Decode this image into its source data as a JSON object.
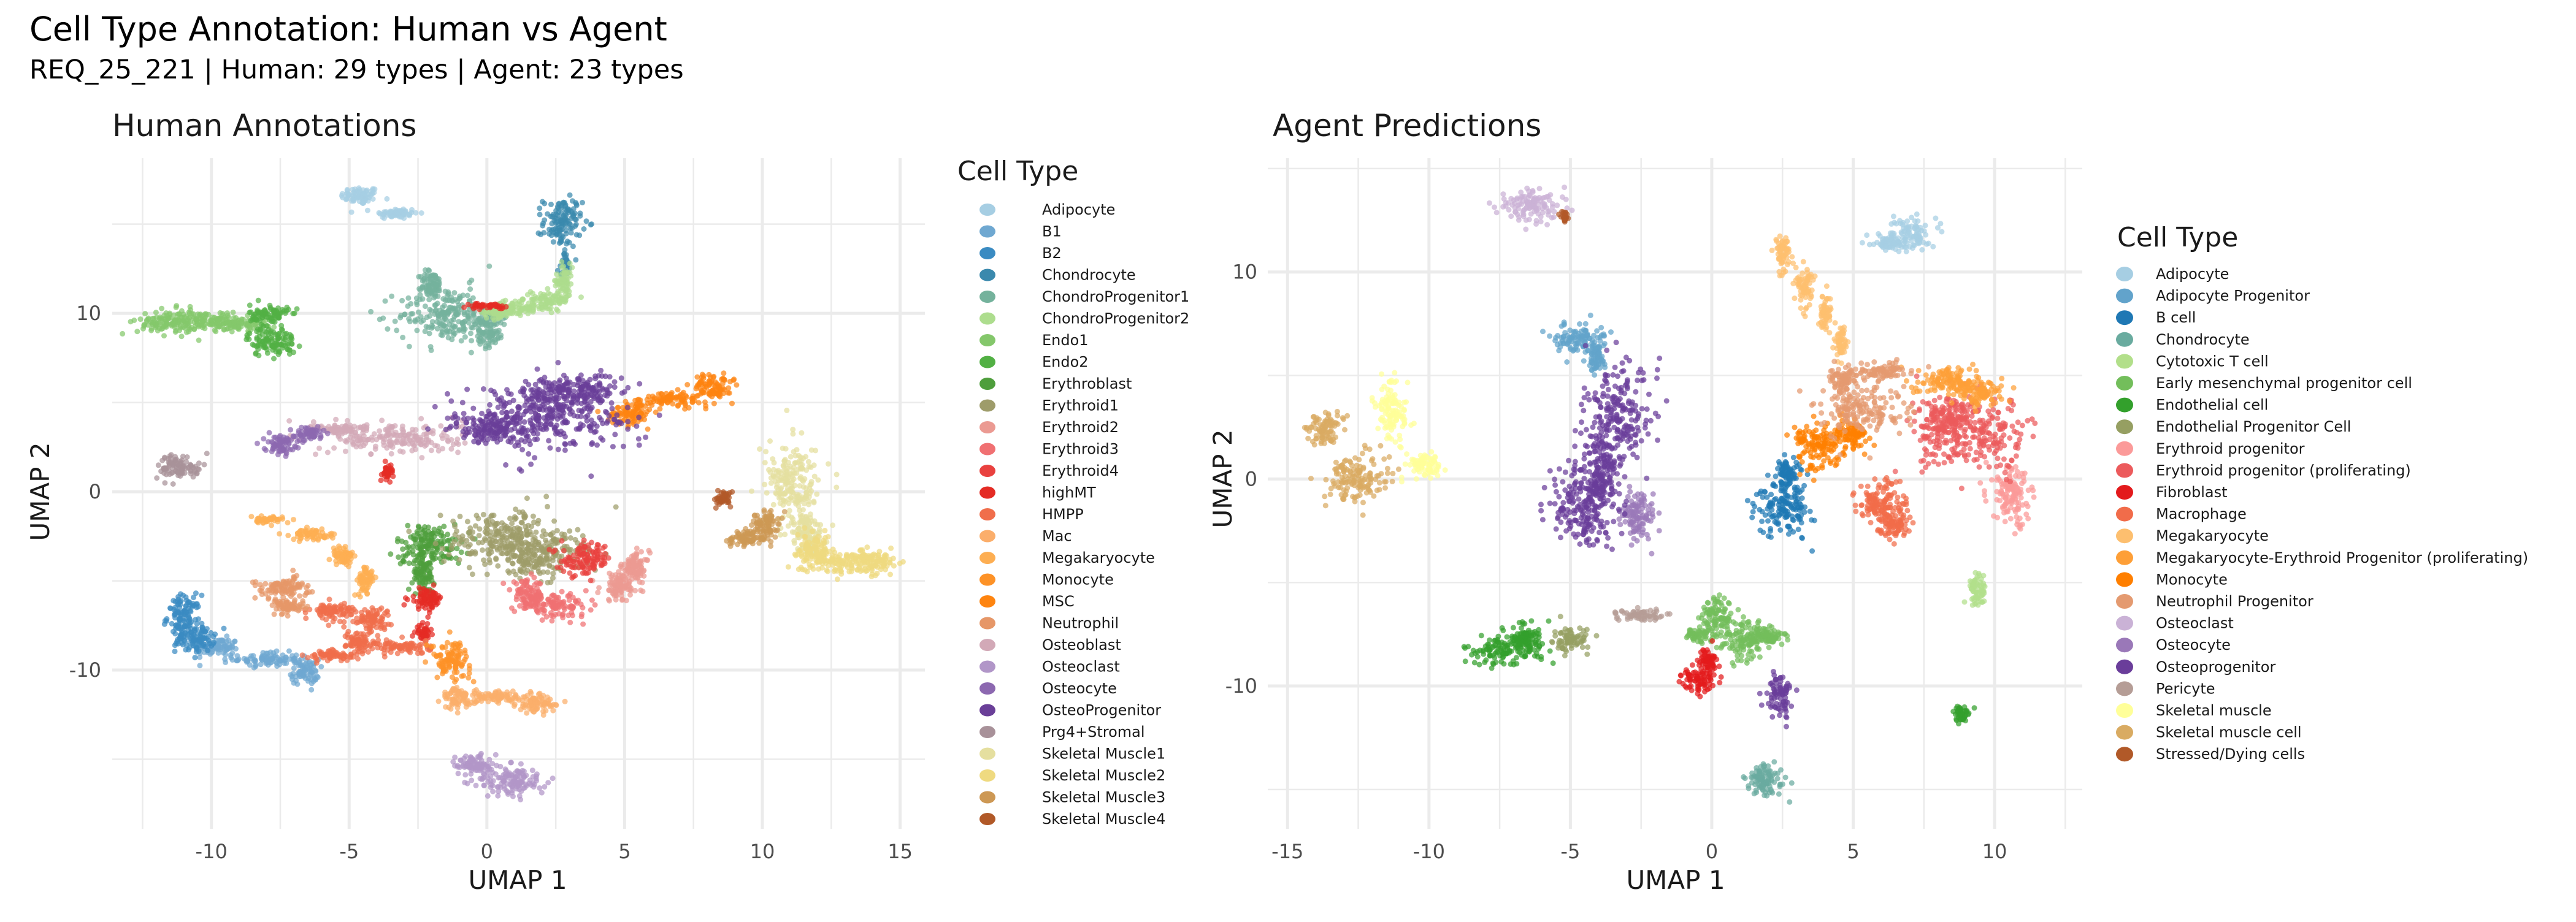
{
  "title": "Cell Type Annotation: Human vs Agent",
  "subtitle": "REQ_25_221 | Human: 29 types | Agent: 23 types",
  "chart_data": [
    {
      "type": "scatter",
      "title": "Human Annotations",
      "xlabel": "UMAP 1",
      "ylabel": "UMAP 2",
      "xlim": [
        -13.6,
        15.9
      ],
      "ylim": [
        -18.9,
        18.7
      ],
      "xticks": [
        -10,
        -5,
        0,
        5,
        10,
        15
      ],
      "yticks": [
        -10,
        0,
        10
      ],
      "grid": true,
      "legend_title": "Cell Type",
      "legend_position": "right",
      "series": [
        {
          "name": "Adipocyte",
          "color": "#a6cee3",
          "clusters": [
            [
              -4.6,
              16.6,
              0.35,
              0.25
            ],
            [
              -3.3,
              15.6,
              0.4,
              0.15
            ]
          ]
        },
        {
          "name": "B1",
          "color": "#6fa8d1",
          "clusters": [
            [
              -9.8,
              -8.7,
              0.4,
              0.25
            ],
            [
              -8.0,
              -9.4,
              0.6,
              0.2
            ],
            [
              -6.6,
              -10.1,
              0.25,
              0.35
            ]
          ]
        },
        {
          "name": "B2",
          "color": "#3a8bc2",
          "clusters": [
            [
              -11.0,
              -7.0,
              0.3,
              0.6
            ],
            [
              -10.6,
              -8.2,
              0.35,
              0.4
            ]
          ]
        },
        {
          "name": "Chondrocyte",
          "color": "#3a89ad",
          "clusters": [
            [
              2.75,
              15.1,
              0.35,
              0.7
            ],
            [
              2.85,
              12.8,
              0.08,
              0.3
            ]
          ]
        },
        {
          "name": "ChondroProgenitor1",
          "color": "#74b29c",
          "clusters": [
            [
              -1.4,
              9.9,
              0.9,
              0.8
            ],
            [
              -2.0,
              11.6,
              0.2,
              0.4
            ],
            [
              0.1,
              9.3,
              0.25,
              0.6
            ]
          ]
        },
        {
          "name": "ChondroProgenitor2",
          "color": "#addd8e",
          "clusters": [
            [
              2.8,
              11.8,
              0.15,
              0.5
            ],
            [
              2.3,
              10.8,
              0.35,
              0.25
            ],
            [
              1.2,
              10.3,
              0.5,
              0.2
            ],
            [
              0.4,
              10.1,
              0.3,
              0.2
            ]
          ]
        },
        {
          "name": "Endo1",
          "color": "#84c76b",
          "clusters": [
            [
              -11.6,
              9.5,
              0.55,
              0.35
            ],
            [
              -10.2,
              9.6,
              0.6,
              0.25
            ],
            [
              -9.0,
              9.4,
              0.5,
              0.2
            ]
          ]
        },
        {
          "name": "Endo2",
          "color": "#52b044",
          "clusters": [
            [
              -7.8,
              8.4,
              0.45,
              0.4
            ],
            [
              -7.9,
              9.9,
              0.35,
              0.3
            ]
          ]
        },
        {
          "name": "Erythroblast",
          "color": "#4e9e3c",
          "clusters": [
            [
              -2.1,
              -3.0,
              0.6,
              0.6
            ],
            [
              -2.3,
              -4.6,
              0.2,
              0.5
            ]
          ]
        },
        {
          "name": "Erythroid1",
          "color": "#9e9c6a",
          "clusters": [
            [
              0.7,
              -2.6,
              1.1,
              0.8
            ],
            [
              1.9,
              -3.6,
              0.8,
              0.6
            ]
          ]
        },
        {
          "name": "Erythroid2",
          "color": "#eb9a92",
          "clusters": [
            [
              4.8,
              -5.3,
              0.35,
              0.4
            ],
            [
              5.4,
              -4.2,
              0.25,
              0.4
            ]
          ]
        },
        {
          "name": "Erythroid3",
          "color": "#f07072",
          "clusters": [
            [
              2.5,
              -6.4,
              0.6,
              0.3
            ],
            [
              1.5,
              -5.8,
              0.3,
              0.4
            ]
          ]
        },
        {
          "name": "Erythroid4",
          "color": "#e9413f",
          "clusters": [
            [
              3.6,
              -3.8,
              0.45,
              0.45
            ]
          ]
        },
        {
          "name": "highMT",
          "color": "#e42b24",
          "clusters": [
            [
              -2.2,
              -6.0,
              0.3,
              0.3
            ],
            [
              -2.3,
              -7.9,
              0.12,
              0.2
            ],
            [
              -3.6,
              1.1,
              0.1,
              0.2
            ],
            [
              0.0,
              10.4,
              0.3,
              0.08
            ]
          ]
        },
        {
          "name": "HMPP",
          "color": "#f06e4b",
          "clusters": [
            [
              -5.6,
              -6.7,
              0.4,
              0.25
            ],
            [
              -4.2,
              -7.1,
              0.35,
              0.3
            ],
            [
              -4.6,
              -8.4,
              0.25,
              0.3
            ],
            [
              -5.6,
              -9.2,
              0.45,
              0.15
            ],
            [
              -3.0,
              -8.7,
              0.5,
              0.2
            ]
          ]
        },
        {
          "name": "Mac",
          "color": "#fbae6b",
          "clusters": [
            [
              -1.0,
              -11.6,
              0.3,
              0.3
            ],
            [
              0.4,
              -11.5,
              0.6,
              0.15
            ],
            [
              1.8,
              -11.9,
              0.35,
              0.25
            ]
          ]
        },
        {
          "name": "Megakaryocyte",
          "color": "#fdae52",
          "clusters": [
            [
              -8.0,
              -1.6,
              0.3,
              0.1
            ],
            [
              -6.3,
              -2.4,
              0.4,
              0.15
            ],
            [
              -5.2,
              -3.6,
              0.2,
              0.3
            ],
            [
              -4.4,
              -5.0,
              0.15,
              0.4
            ]
          ]
        },
        {
          "name": "Monocyte",
          "color": "#fd9227",
          "clusters": [
            [
              -1.3,
              -9.4,
              0.35,
              0.5
            ]
          ]
        },
        {
          "name": "MSC",
          "color": "#fe8410",
          "clusters": [
            [
              5.2,
              4.4,
              0.4,
              0.3
            ],
            [
              6.8,
              5.2,
              0.6,
              0.2
            ],
            [
              8.2,
              5.9,
              0.35,
              0.35
            ]
          ]
        },
        {
          "name": "Neutrophil",
          "color": "#e69768",
          "clusters": [
            [
              -7.4,
              -5.4,
              0.5,
              0.3
            ],
            [
              -7.2,
              -6.4,
              0.3,
              0.2
            ]
          ]
        },
        {
          "name": "Osteoblast",
          "color": "#d2a9b7",
          "clusters": [
            [
              -3.3,
              3.0,
              1.2,
              0.45
            ],
            [
              -5.2,
              3.5,
              0.5,
              0.15
            ]
          ]
        },
        {
          "name": "Osteoclast",
          "color": "#b196c8",
          "clusters": [
            [
              0.9,
              -16.2,
              0.6,
              0.45
            ],
            [
              -0.5,
              -15.3,
              0.3,
              0.3
            ]
          ]
        },
        {
          "name": "Osteocyte",
          "color": "#8c68b0",
          "clusters": [
            [
              -7.5,
              2.7,
              0.3,
              0.25
            ],
            [
              -6.5,
              3.3,
              0.3,
              0.15
            ]
          ]
        },
        {
          "name": "OsteoProgenitor",
          "color": "#6a3f98",
          "clusters": [
            [
              2.3,
              4.3,
              1.5,
              1.0
            ],
            [
              0.2,
              3.6,
              0.8,
              0.45
            ],
            [
              3.0,
              5.6,
              0.8,
              0.5
            ]
          ]
        },
        {
          "name": "Prg4+Stromal",
          "color": "#a89199",
          "clusters": [
            [
              -11.1,
              1.4,
              0.4,
              0.35
            ]
          ]
        },
        {
          "name": "Skeletal Muscle1",
          "color": "#e5df9f",
          "clusters": [
            [
              11.1,
              0.4,
              0.5,
              1.1
            ],
            [
              11.6,
              -2.3,
              0.3,
              0.6
            ]
          ]
        },
        {
          "name": "Skeletal Muscle2",
          "color": "#efda80",
          "clusters": [
            [
              12.8,
              -3.9,
              0.7,
              0.35
            ],
            [
              11.9,
              -3.3,
              0.3,
              0.4
            ],
            [
              14.1,
              -4.0,
              0.35,
              0.3
            ]
          ]
        },
        {
          "name": "Skeletal Muscle3",
          "color": "#cd9854",
          "clusters": [
            [
              9.5,
              -2.6,
              0.4,
              0.25
            ],
            [
              10.1,
              -1.8,
              0.25,
              0.35
            ]
          ]
        },
        {
          "name": "Skeletal Muscle4",
          "color": "#b15928",
          "clusters": [
            [
              8.6,
              -0.4,
              0.15,
              0.2
            ]
          ]
        }
      ]
    },
    {
      "type": "scatter",
      "title": "Agent Predictions",
      "xlabel": "UMAP 1",
      "ylabel": "UMAP 2",
      "xlim": [
        -15.7,
        13.1
      ],
      "ylim": [
        -16.9,
        15.5
      ],
      "xticks": [
        -15,
        -10,
        -5,
        0,
        5,
        10
      ],
      "yticks": [
        -10,
        0,
        10
      ],
      "grid": true,
      "legend_title": "Cell Type",
      "legend_position": "right",
      "series": [
        {
          "name": "Adipocyte",
          "color": "#a6cee3",
          "clusters": [
            [
              7.0,
              11.9,
              0.35,
              0.4
            ],
            [
              6.3,
              11.4,
              0.3,
              0.2
            ]
          ]
        },
        {
          "name": "Adipocyte Progenitor",
          "color": "#62a3cb",
          "clusters": [
            [
              -4.7,
              6.8,
              0.45,
              0.35
            ],
            [
              -4.1,
              5.9,
              0.15,
              0.4
            ]
          ]
        },
        {
          "name": "B cell",
          "color": "#1f78b4",
          "clusters": [
            [
              2.6,
              -1.3,
              0.5,
              0.7
            ],
            [
              2.7,
              0.3,
              0.2,
              0.4
            ]
          ]
        },
        {
          "name": "Chondrocyte",
          "color": "#69ab9f",
          "clusters": [
            [
              1.9,
              -14.6,
              0.35,
              0.4
            ]
          ]
        },
        {
          "name": "Cytotoxic T cell",
          "color": "#b2df8a",
          "clusters": [
            [
              9.4,
              -5.3,
              0.15,
              0.4
            ]
          ]
        },
        {
          "name": "Early mesenchymal progenitor cell",
          "color": "#73be5b",
          "clusters": [
            [
              0.2,
              -6.7,
              0.3,
              0.5
            ],
            [
              1.2,
              -7.8,
              0.45,
              0.5
            ],
            [
              2.0,
              -7.6,
              0.3,
              0.2
            ],
            [
              -0.5,
              -7.5,
              0.2,
              0.15
            ]
          ]
        },
        {
          "name": "Endothelial cell",
          "color": "#33a02c",
          "clusters": [
            [
              -7.4,
              -8.3,
              0.7,
              0.35
            ],
            [
              -6.6,
              -7.6,
              0.3,
              0.3
            ],
            [
              8.8,
              -11.4,
              0.15,
              0.2
            ]
          ]
        },
        {
          "name": "Endothelial Progenitor Cell",
          "color": "#969f62",
          "clusters": [
            [
              -5.0,
              -7.8,
              0.3,
              0.3
            ]
          ]
        },
        {
          "name": "Erythroid progenitor",
          "color": "#fb9a99",
          "clusters": [
            [
              10.6,
              -0.9,
              0.35,
              0.7
            ]
          ]
        },
        {
          "name": "Erythroid progenitor (proliferating)",
          "color": "#ec5a5c",
          "clusters": [
            [
              9.4,
              2.1,
              1.0,
              0.9
            ],
            [
              8.2,
              3.0,
              0.5,
              0.5
            ]
          ]
        },
        {
          "name": "Fibroblast",
          "color": "#e31a1c",
          "clusters": [
            [
              -0.5,
              -9.7,
              0.3,
              0.3
            ],
            [
              -0.1,
              -8.8,
              0.15,
              0.3
            ]
          ]
        },
        {
          "name": "Macrophage",
          "color": "#f16c4a",
          "clusters": [
            [
              6.0,
              -1.1,
              0.45,
              0.5
            ],
            [
              6.4,
              -2.2,
              0.25,
              0.4
            ]
          ]
        },
        {
          "name": "Megakaryocyte",
          "color": "#fdbf6f",
          "clusters": [
            [
              2.5,
              10.8,
              0.15,
              0.4
            ],
            [
              3.3,
              9.4,
              0.15,
              0.5
            ],
            [
              4.0,
              8.0,
              0.1,
              0.5
            ],
            [
              4.6,
              6.6,
              0.1,
              0.4
            ]
          ]
        },
        {
          "name": "Megakaryocyte-Erythroid Progenitor (proliferating)",
          "color": "#fe9f37",
          "clusters": [
            [
              8.4,
              4.7,
              0.6,
              0.35
            ],
            [
              9.5,
              4.2,
              0.4,
              0.3
            ]
          ]
        },
        {
          "name": "Monocyte",
          "color": "#ff7f00",
          "clusters": [
            [
              3.9,
              1.6,
              0.5,
              0.6
            ],
            [
              5.0,
              2.2,
              0.3,
              0.3
            ]
          ]
        },
        {
          "name": "Neutrophil Progenitor",
          "color": "#e49a70",
          "clusters": [
            [
              5.3,
              3.4,
              0.7,
              0.6
            ],
            [
              6.0,
              5.2,
              0.6,
              0.2
            ],
            [
              4.6,
              4.8,
              0.2,
              0.3
            ]
          ]
        },
        {
          "name": "Osteoclast",
          "color": "#cab2d6",
          "clusters": [
            [
              -6.4,
              13.2,
              0.55,
              0.4
            ]
          ]
        },
        {
          "name": "Osteocyte",
          "color": "#9a78b8",
          "clusters": [
            [
              -2.6,
              -1.8,
              0.3,
              0.6
            ]
          ]
        },
        {
          "name": "Osteoprogenitor",
          "color": "#6a3d9a",
          "clusters": [
            [
              -3.3,
              3.0,
              0.6,
              1.2
            ],
            [
              -4.6,
              -1.4,
              0.6,
              0.9
            ],
            [
              -3.9,
              0.3,
              0.4,
              0.8
            ],
            [
              2.4,
              -10.4,
              0.2,
              0.5
            ]
          ]
        },
        {
          "name": "Pericyte",
          "color": "#b59d96",
          "clusters": [
            [
              -2.5,
              -6.6,
              0.4,
              0.15
            ]
          ]
        },
        {
          "name": "Skeletal muscle",
          "color": "#ffff99",
          "clusters": [
            [
              -11.3,
              3.2,
              0.3,
              0.7
            ],
            [
              -10.2,
              0.7,
              0.3,
              0.3
            ]
          ]
        },
        {
          "name": "Skeletal muscle cell",
          "color": "#d9ab62",
          "clusters": [
            [
              -12.6,
              0.0,
              0.55,
              0.6
            ],
            [
              -13.7,
              2.5,
              0.3,
              0.4
            ]
          ]
        },
        {
          "name": "Stressed/Dying cells",
          "color": "#b15928",
          "clusters": [
            [
              -5.2,
              12.6,
              0.08,
              0.15
            ]
          ]
        }
      ]
    }
  ]
}
